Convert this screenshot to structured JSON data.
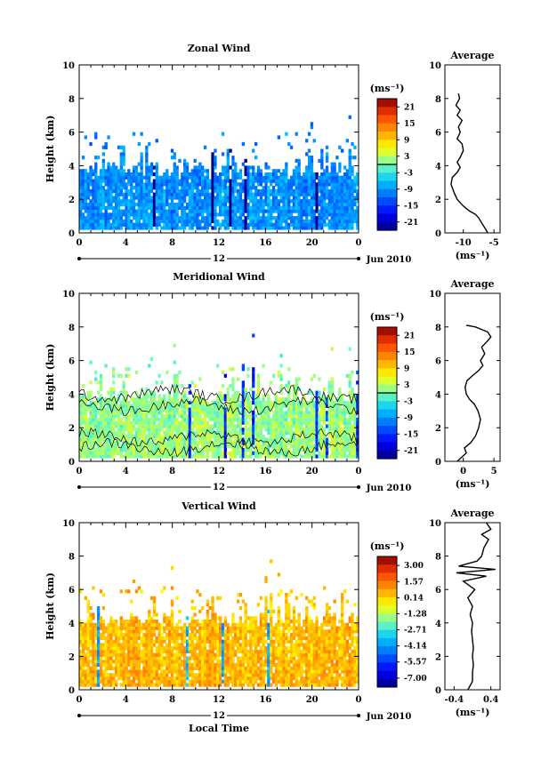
{
  "chart_data": [
    {
      "type": "heatmap",
      "title": "Zonal Wind",
      "ylabel": "Height (km)",
      "ylim": [
        0,
        10
      ],
      "yticks": [
        "0",
        "2",
        "4",
        "6",
        "8",
        "10"
      ],
      "xlim": [
        0,
        24
      ],
      "xticks": [
        "0",
        "4",
        "8",
        "12",
        "16",
        "20",
        "0"
      ],
      "date_center": "12",
      "date_label": "Jun 2010",
      "colorbar": {
        "unit": "(ms⁻¹)",
        "range": [
          -24,
          24
        ],
        "ticks": [
          {
            "value": 21,
            "label": "21"
          },
          {
            "value": 15,
            "label": "15"
          },
          {
            "value": 9,
            "label": "9"
          },
          {
            "value": 3,
            "label": "3"
          },
          {
            "value": -3,
            "label": "-3"
          },
          {
            "value": -9,
            "label": "-9"
          },
          {
            "value": -15,
            "label": "-15"
          },
          {
            "value": -21,
            "label": "-21"
          }
        ],
        "zero_line": 0
      },
      "field": {
        "base": -9,
        "cloud_top": [
          3.3,
          4.2
        ],
        "base_color": "#3a60e8"
      },
      "contours": false,
      "average": {
        "title": "Average",
        "xlabel": "(ms⁻¹)",
        "xlim": [
          -13,
          -4
        ],
        "xticks": [
          {
            "value": -10,
            "label": "-10"
          },
          {
            "value": -5,
            "label": "-5"
          }
        ],
        "profile": [
          [
            -6,
            0
          ],
          [
            -6.5,
            0.3
          ],
          [
            -7,
            0.6
          ],
          [
            -7.5,
            0.9
          ],
          [
            -8,
            1.1
          ],
          [
            -9,
            1.3
          ],
          [
            -10,
            1.6
          ],
          [
            -11,
            2.0
          ],
          [
            -11.5,
            2.4
          ],
          [
            -12,
            2.9
          ],
          [
            -11.8,
            3.3
          ],
          [
            -11,
            3.6
          ],
          [
            -10.5,
            3.9
          ],
          [
            -11,
            4.2
          ],
          [
            -10.5,
            4.5
          ],
          [
            -10,
            4.9
          ],
          [
            -10.2,
            5.3
          ],
          [
            -11,
            5.6
          ],
          [
            -10.5,
            6.0
          ],
          [
            -10.8,
            6.3
          ],
          [
            -10.2,
            6.7
          ],
          [
            -11,
            7.0
          ],
          [
            -10.5,
            7.3
          ],
          [
            -11.2,
            7.6
          ],
          [
            -10.6,
            8.0
          ],
          [
            -10.8,
            8.3
          ]
        ],
        "ylim": [
          0,
          10
        ]
      }
    },
    {
      "type": "heatmap",
      "title": "Meridional Wind",
      "ylabel": "Height (km)",
      "ylim": [
        0,
        10
      ],
      "yticks": [
        "0",
        "2",
        "4",
        "6",
        "8",
        "10"
      ],
      "xlim": [
        0,
        24
      ],
      "xticks": [
        "0",
        "4",
        "8",
        "12",
        "16",
        "20",
        "0"
      ],
      "date_center": "12",
      "date_label": "Jun 2010",
      "colorbar": {
        "unit": "(ms⁻¹)",
        "range": [
          -24,
          24
        ],
        "ticks": [
          {
            "value": 21,
            "label": "21"
          },
          {
            "value": 15,
            "label": "15"
          },
          {
            "value": 9,
            "label": "9"
          },
          {
            "value": 3,
            "label": "3"
          },
          {
            "value": -3,
            "label": "-3"
          },
          {
            "value": -9,
            "label": "-9"
          },
          {
            "value": -15,
            "label": "-15"
          },
          {
            "value": -21,
            "label": "-21"
          }
        ],
        "zero_line": 0
      },
      "field": {
        "base": 2,
        "cloud_top": [
          3.5,
          4.4
        ],
        "base_color": "#7ee8b8"
      },
      "contours": true,
      "average": {
        "title": "Average",
        "xlabel": "(ms⁻¹)",
        "xlim": [
          -3,
          6
        ],
        "xticks": [
          {
            "value": 0,
            "label": "0"
          },
          {
            "value": 5,
            "label": "5"
          }
        ],
        "profile": [
          [
            -1,
            0
          ],
          [
            0.5,
            0.5
          ],
          [
            0.2,
            0.8
          ],
          [
            1.2,
            1.1
          ],
          [
            2,
            1.5
          ],
          [
            2.5,
            2.0
          ],
          [
            2.8,
            2.5
          ],
          [
            2.4,
            3.0
          ],
          [
            1.8,
            3.4
          ],
          [
            1,
            3.7
          ],
          [
            0.5,
            4.0
          ],
          [
            0.3,
            4.4
          ],
          [
            0.6,
            4.8
          ],
          [
            1.5,
            5.1
          ],
          [
            2.5,
            5.4
          ],
          [
            3.2,
            5.7
          ],
          [
            2.8,
            6.0
          ],
          [
            3.5,
            6.4
          ],
          [
            3,
            6.8
          ],
          [
            3.8,
            7.1
          ],
          [
            4.5,
            7.4
          ],
          [
            4,
            7.7
          ],
          [
            2,
            8.0
          ],
          [
            0.5,
            8.1
          ]
        ],
        "ylim": [
          0,
          10
        ]
      }
    },
    {
      "type": "heatmap",
      "title": "Vertical Wind",
      "ylabel": "Height (km)",
      "xlabel": "Local Time",
      "ylim": [
        0,
        10
      ],
      "yticks": [
        "0",
        "2",
        "4",
        "6",
        "8",
        "10"
      ],
      "xlim": [
        0,
        24
      ],
      "xticks": [
        "0",
        "4",
        "8",
        "12",
        "16",
        "20",
        "0"
      ],
      "date_center": "12",
      "date_label": "Jun 2010",
      "colorbar": {
        "unit": "(ms⁻¹)",
        "range": [
          -7.8,
          3.8
        ],
        "ticks": [
          {
            "value": 3.0,
            "label": "3.00"
          },
          {
            "value": 1.57,
            "label": "1.57"
          },
          {
            "value": 0.14,
            "label": "0.14"
          },
          {
            "value": -1.28,
            "label": "-1.28"
          },
          {
            "value": -2.71,
            "label": "-2.71"
          },
          {
            "value": -4.14,
            "label": "-4.14"
          },
          {
            "value": -5.57,
            "label": "-5.57"
          },
          {
            "value": -7.0,
            "label": "-7.00"
          }
        ],
        "zero_line": null
      },
      "field": {
        "base": 0.6,
        "cloud_top": [
          3.8,
          4.6
        ],
        "base_color": "#f2f25a"
      },
      "contours": false,
      "average": {
        "title": "Average",
        "xlabel": "(ms⁻¹)",
        "xlim": [
          -0.6,
          0.6
        ],
        "xticks": [
          {
            "value": -0.4,
            "label": "-0.4"
          },
          {
            "value": 0.4,
            "label": "0.4"
          }
        ],
        "profile": [
          [
            -0.1,
            0
          ],
          [
            0,
            0.5
          ],
          [
            0,
            1.0
          ],
          [
            0.02,
            1.5
          ],
          [
            0,
            2.0
          ],
          [
            0.02,
            2.5
          ],
          [
            0,
            3.0
          ],
          [
            -0.02,
            3.5
          ],
          [
            0,
            4.0
          ],
          [
            -0.05,
            4.5
          ],
          [
            0,
            5.0
          ],
          [
            -0.1,
            5.5
          ],
          [
            0.05,
            6.0
          ],
          [
            -0.2,
            6.5
          ],
          [
            0.3,
            6.8
          ],
          [
            -0.35,
            7.0
          ],
          [
            0.5,
            7.2
          ],
          [
            -0.3,
            7.4
          ],
          [
            0.1,
            7.7
          ],
          [
            0.2,
            8.0
          ],
          [
            0.25,
            8.5
          ],
          [
            0.35,
            9.0
          ],
          [
            0.2,
            9.3
          ],
          [
            0.4,
            9.6
          ],
          [
            0.3,
            10.0
          ]
        ],
        "ylim": [
          0,
          10
        ]
      }
    }
  ]
}
